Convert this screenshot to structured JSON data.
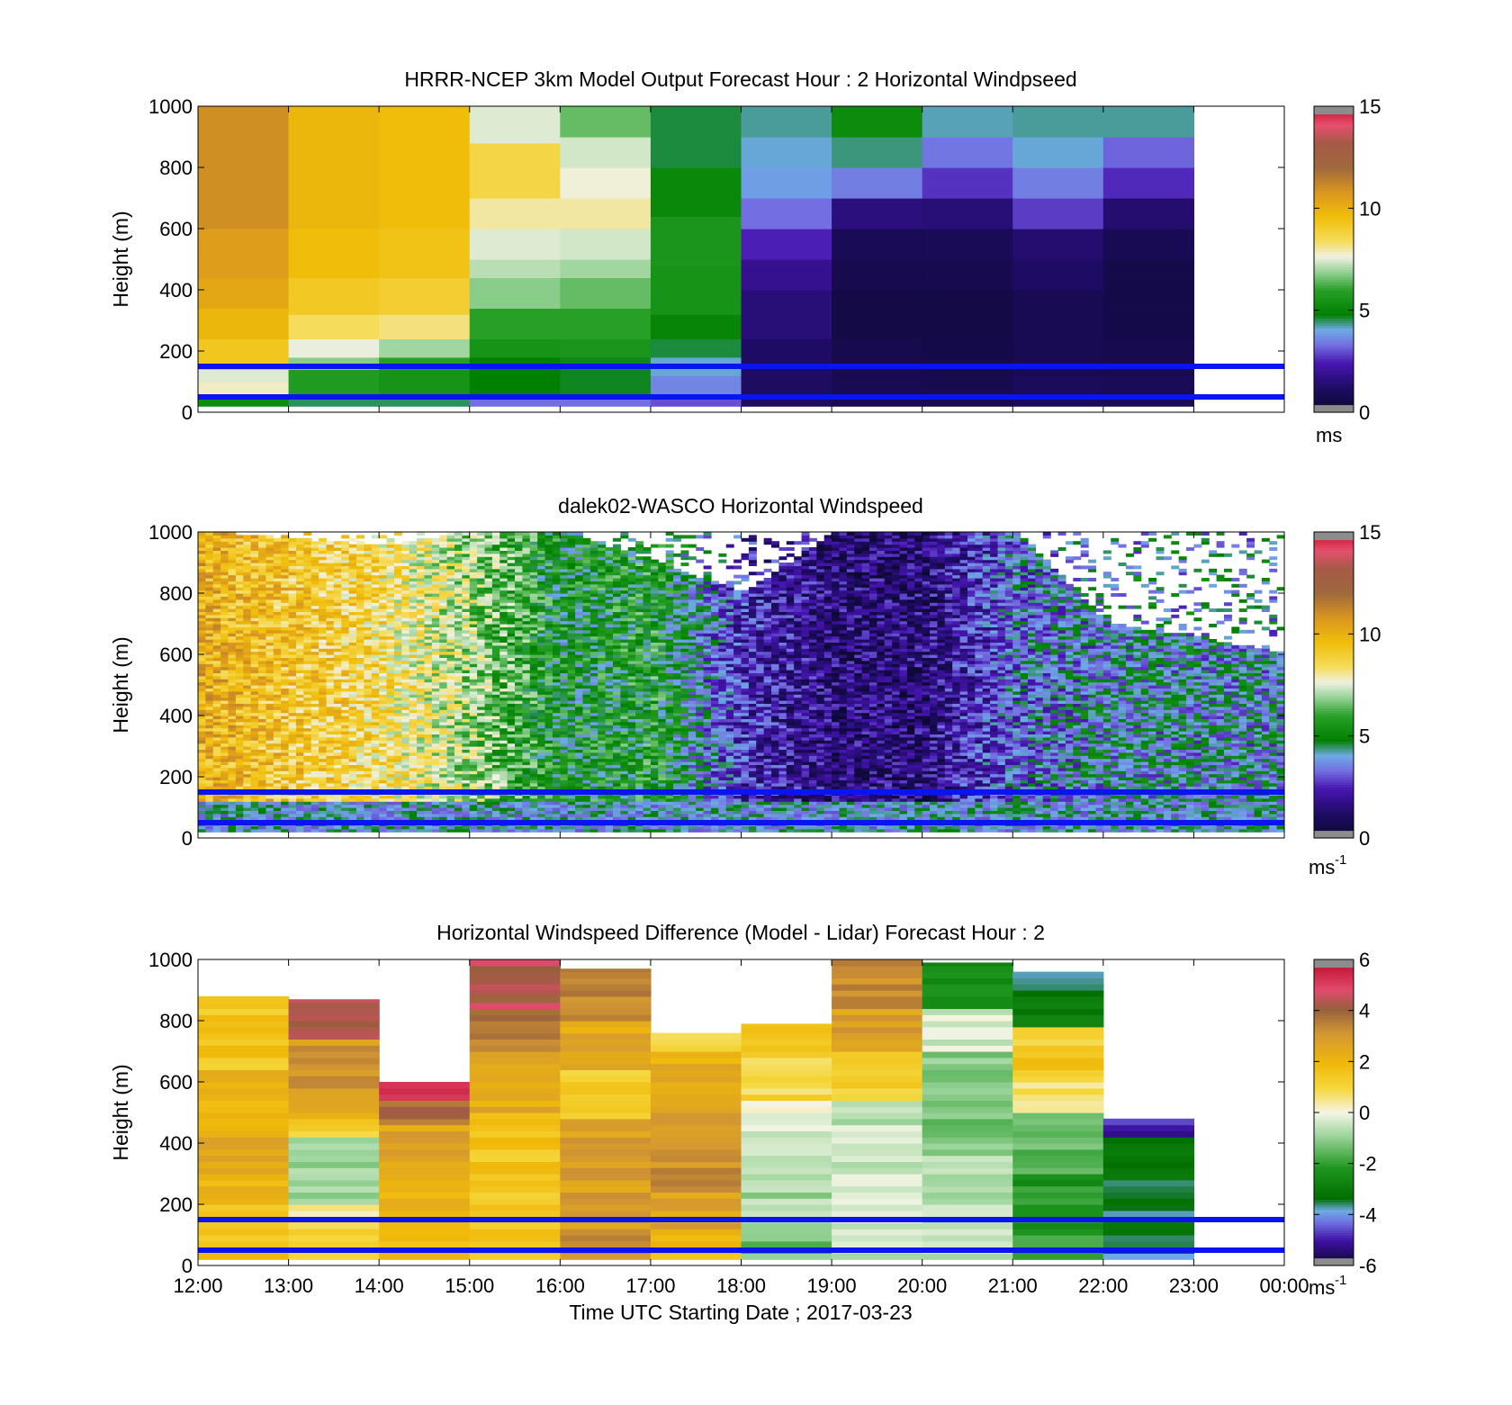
{
  "chart_data": [
    {
      "type": "heatmap",
      "title": "HRRR-NCEP 3km Model Output   Forecast Hour : 2 Horizontal Windpseed",
      "ylabel": "Height (m)",
      "ylim": [
        0,
        1000
      ],
      "yticks": [
        0,
        200,
        400,
        600,
        800,
        1000
      ],
      "x_hours": [
        12,
        13,
        14,
        15,
        16,
        17,
        18,
        19,
        20,
        21,
        22,
        23,
        24
      ],
      "colorbar": {
        "min": 0,
        "max": 15,
        "ticks": [
          0,
          5,
          10,
          15
        ],
        "unit": "ms",
        "unit_sup": ""
      },
      "reference_lines_m": [
        50,
        150
      ],
      "columns": [
        {
          "hour": 12,
          "levels": [
            [
              1000,
              11
            ],
            [
              600,
              10.6
            ],
            [
              450,
              10.3
            ],
            [
              350,
              9.8
            ],
            [
              250,
              9.3
            ],
            [
              150,
              7.5
            ],
            [
              110,
              7.8
            ],
            [
              60,
              5.2
            ],
            [
              30,
              3.5
            ]
          ]
        },
        {
          "hour": 13,
          "levels": [
            [
              1000,
              9.8
            ],
            [
              600,
              9.6
            ],
            [
              450,
              9.2
            ],
            [
              330,
              8.4
            ],
            [
              250,
              7.6
            ],
            [
              180,
              6.8
            ],
            [
              140,
              5.8
            ],
            [
              60,
              4.5
            ],
            [
              30,
              3.5
            ]
          ]
        },
        {
          "hour": 14,
          "levels": [
            [
              1000,
              9.6
            ],
            [
              600,
              9.4
            ],
            [
              450,
              9
            ],
            [
              330,
              8.2
            ],
            [
              250,
              7
            ],
            [
              180,
              6
            ],
            [
              140,
              5.5
            ],
            [
              60,
              4.5
            ],
            [
              30,
              3.5
            ]
          ]
        },
        {
          "hour": 15,
          "levels": [
            [
              1000,
              7.5
            ],
            [
              880,
              8.7
            ],
            [
              700,
              8
            ],
            [
              600,
              7.5
            ],
            [
              500,
              7.2
            ],
            [
              450,
              6.8
            ],
            [
              350,
              6
            ],
            [
              250,
              5.5
            ],
            [
              180,
              4.8
            ],
            [
              60,
              3.3
            ],
            [
              30,
              3
            ]
          ]
        },
        {
          "hour": 16,
          "levels": [
            [
              1000,
              6.5
            ],
            [
              900,
              7.4
            ],
            [
              800,
              7.7
            ],
            [
              700,
              8
            ],
            [
              600,
              7.4
            ],
            [
              500,
              7
            ],
            [
              450,
              6.5
            ],
            [
              350,
              6
            ],
            [
              250,
              5.6
            ],
            [
              180,
              4.7
            ],
            [
              60,
              3.3
            ],
            [
              30,
              3
            ]
          ]
        },
        {
          "hour": 17,
          "levels": [
            [
              1000,
              4.6
            ],
            [
              800,
              5.1
            ],
            [
              650,
              5.6
            ],
            [
              480,
              5.5
            ],
            [
              330,
              5
            ],
            [
              250,
              4.6
            ],
            [
              180,
              4.1
            ],
            [
              130,
              3.6
            ],
            [
              60,
              3
            ]
          ]
        },
        {
          "hour": 18,
          "levels": [
            [
              1000,
              4.3
            ],
            [
              900,
              4.1
            ],
            [
              800,
              3.9
            ],
            [
              700,
              3.3
            ],
            [
              600,
              2.5
            ],
            [
              500,
              1.9
            ],
            [
              400,
              1.5
            ],
            [
              250,
              1.2
            ],
            [
              130,
              1.1
            ]
          ]
        },
        {
          "hour": 19,
          "levels": [
            [
              1000,
              5.2
            ],
            [
              900,
              4.4
            ],
            [
              800,
              3.5
            ],
            [
              700,
              1.6
            ],
            [
              600,
              0.9
            ],
            [
              500,
              0.7
            ],
            [
              400,
              0.5
            ],
            [
              250,
              0.7
            ],
            [
              130,
              0.8
            ]
          ]
        },
        {
          "hour": 20,
          "levels": [
            [
              1000,
              4.2
            ],
            [
              900,
              3.4
            ],
            [
              800,
              2.7
            ],
            [
              700,
              1.5
            ],
            [
              600,
              0.9
            ],
            [
              500,
              0.7
            ],
            [
              400,
              0.5
            ],
            [
              250,
              0.6
            ],
            [
              130,
              0.7
            ]
          ]
        },
        {
          "hour": 21,
          "levels": [
            [
              1000,
              4.3
            ],
            [
              900,
              4.1
            ],
            [
              800,
              3.5
            ],
            [
              700,
              2.8
            ],
            [
              600,
              1.4
            ],
            [
              500,
              1.2
            ],
            [
              400,
              0.8
            ],
            [
              250,
              0.8
            ],
            [
              130,
              1
            ]
          ]
        },
        {
          "hour": 22,
          "levels": [
            [
              1000,
              4.3
            ],
            [
              900,
              3.2
            ],
            [
              800,
              2.6
            ],
            [
              700,
              1.4
            ],
            [
              600,
              0.8
            ],
            [
              500,
              0.6
            ],
            [
              400,
              0.6
            ],
            [
              250,
              0.7
            ],
            [
              130,
              0.9
            ]
          ]
        }
      ]
    },
    {
      "type": "heatmap",
      "title": "dalek02-WASCO  Horizontal Windspeed",
      "ylabel": "Height (m)",
      "ylim": [
        0,
        1000
      ],
      "yticks": [
        0,
        200,
        400,
        600,
        800,
        1000
      ],
      "x_hours": [
        12,
        13,
        14,
        15,
        16,
        17,
        18,
        19,
        20,
        21,
        22,
        23,
        24
      ],
      "colorbar": {
        "min": 0,
        "max": 15,
        "ticks": [
          0,
          5,
          10,
          15
        ],
        "unit": "ms",
        "unit_sup": "-1"
      },
      "reference_lines_m": [
        50,
        150
      ],
      "profile_hours": [
        12,
        14,
        15,
        16,
        17,
        18,
        19,
        20,
        21,
        22,
        23,
        24
      ],
      "profile_speeds": [
        10,
        8.5,
        7,
        5,
        5.5,
        2.5,
        1.5,
        1.5,
        3.5,
        4,
        4,
        4
      ],
      "profile_tops_m": [
        1000,
        950,
        1000,
        1000,
        900,
        800,
        1000,
        1000,
        1000,
        700,
        650,
        600
      ],
      "sample_interval_min": 5
    },
    {
      "type": "heatmap",
      "title": "Horizontal Windspeed Difference (Model - Lidar) Forecast Hour : 2",
      "ylabel": "Height (m)",
      "xlabel": "Time UTC  Starting Date ; 2017-03-23",
      "ylim": [
        0,
        1000
      ],
      "yticks": [
        0,
        200,
        400,
        600,
        800,
        1000
      ],
      "x_hours": [
        12,
        13,
        14,
        15,
        16,
        17,
        18,
        19,
        20,
        21,
        22,
        23,
        24
      ],
      "xtick_labels": [
        "12:00",
        "13:00",
        "14:00",
        "15:00",
        "16:00",
        "17:00",
        "18:00",
        "19:00",
        "20:00",
        "21:00",
        "22:00",
        "23:00",
        "00:00"
      ],
      "colorbar": {
        "min": -6,
        "max": 6,
        "ticks": [
          -6,
          -4,
          -2,
          0,
          2,
          4,
          6
        ],
        "unit": "ms",
        "unit_sup": "-1"
      },
      "reference_lines_m": [
        50,
        150
      ],
      "columns": [
        {
          "hour": 12,
          "top": 880,
          "levels": [
            [
              1000,
              1.5
            ],
            [
              650,
              2
            ],
            [
              450,
              2.6
            ],
            [
              300,
              2
            ],
            [
              200,
              1.6
            ],
            [
              30,
              1
            ]
          ]
        },
        {
          "hour": 13,
          "top": 870,
          "levels": [
            [
              1000,
              4.3
            ],
            [
              750,
              3
            ],
            [
              550,
              2.2
            ],
            [
              480,
              1.2
            ],
            [
              420,
              -0.8
            ],
            [
              300,
              -0.8
            ],
            [
              200,
              0.5
            ],
            [
              130,
              1.2
            ],
            [
              30,
              1
            ]
          ]
        },
        {
          "hour": 14,
          "top": 600,
          "levels": [
            [
              1000,
              5
            ],
            [
              550,
              3.8
            ],
            [
              470,
              2.6
            ],
            [
              300,
              2.2
            ],
            [
              130,
              1.8
            ],
            [
              30,
              2
            ]
          ]
        },
        {
          "hour": 15,
          "top": 1000,
          "levels": [
            [
              1000,
              4.4
            ],
            [
              850,
              3.6
            ],
            [
              700,
              2.4
            ],
            [
              500,
              1.5
            ],
            [
              300,
              1.4
            ],
            [
              200,
              1.6
            ],
            [
              30,
              1.4
            ]
          ]
        },
        {
          "hour": 16,
          "top": 970,
          "levels": [
            [
              1000,
              3.4
            ],
            [
              800,
              2.5
            ],
            [
              650,
              1.3
            ],
            [
              480,
              2.8
            ],
            [
              130,
              3.4
            ],
            [
              30,
              3.4
            ]
          ]
        },
        {
          "hour": 17,
          "top": 760,
          "levels": [
            [
              1000,
              1
            ],
            [
              700,
              2.3
            ],
            [
              550,
              2.8
            ],
            [
              400,
              3.2
            ],
            [
              250,
              2.6
            ],
            [
              130,
              1.8
            ],
            [
              30,
              1.6
            ]
          ]
        },
        {
          "hour": 18,
          "top": 790,
          "levels": [
            [
              1000,
              1.5
            ],
            [
              700,
              1
            ],
            [
              550,
              -0.2
            ],
            [
              400,
              -0.6
            ],
            [
              250,
              -0.8
            ],
            [
              130,
              -1.4
            ],
            [
              30,
              -1.4
            ]
          ]
        },
        {
          "hour": 19,
          "top": 1000,
          "levels": [
            [
              1000,
              3.3
            ],
            [
              850,
              2.8
            ],
            [
              700,
              1.2
            ],
            [
              550,
              -0.5
            ],
            [
              400,
              -0.4
            ],
            [
              250,
              -0.2
            ],
            [
              130,
              -0.6
            ],
            [
              30,
              -0.6
            ]
          ]
        },
        {
          "hour": 20,
          "top": 990,
          "levels": [
            [
              1000,
              -2.5
            ],
            [
              850,
              -0.3
            ],
            [
              700,
              -1.2
            ],
            [
              550,
              -1.3
            ],
            [
              400,
              -0.8
            ],
            [
              250,
              -0.6
            ],
            [
              130,
              -0.4
            ],
            [
              30,
              0.4
            ]
          ]
        },
        {
          "hour": 21,
          "top": 960,
          "levels": [
            [
              1000,
              -4
            ],
            [
              900,
              -3
            ],
            [
              780,
              1.2
            ],
            [
              700,
              1.6
            ],
            [
              620,
              0.6
            ],
            [
              500,
              -1.5
            ],
            [
              300,
              -2.2
            ],
            [
              130,
              -2
            ],
            [
              30,
              -2
            ]
          ]
        },
        {
          "hour": 22,
          "top": 480,
          "levels": [
            [
              1000,
              -5
            ],
            [
              430,
              -3.2
            ],
            [
              300,
              -3.3
            ],
            [
              130,
              -3.5
            ],
            [
              30,
              -3.5
            ]
          ]
        }
      ]
    }
  ]
}
